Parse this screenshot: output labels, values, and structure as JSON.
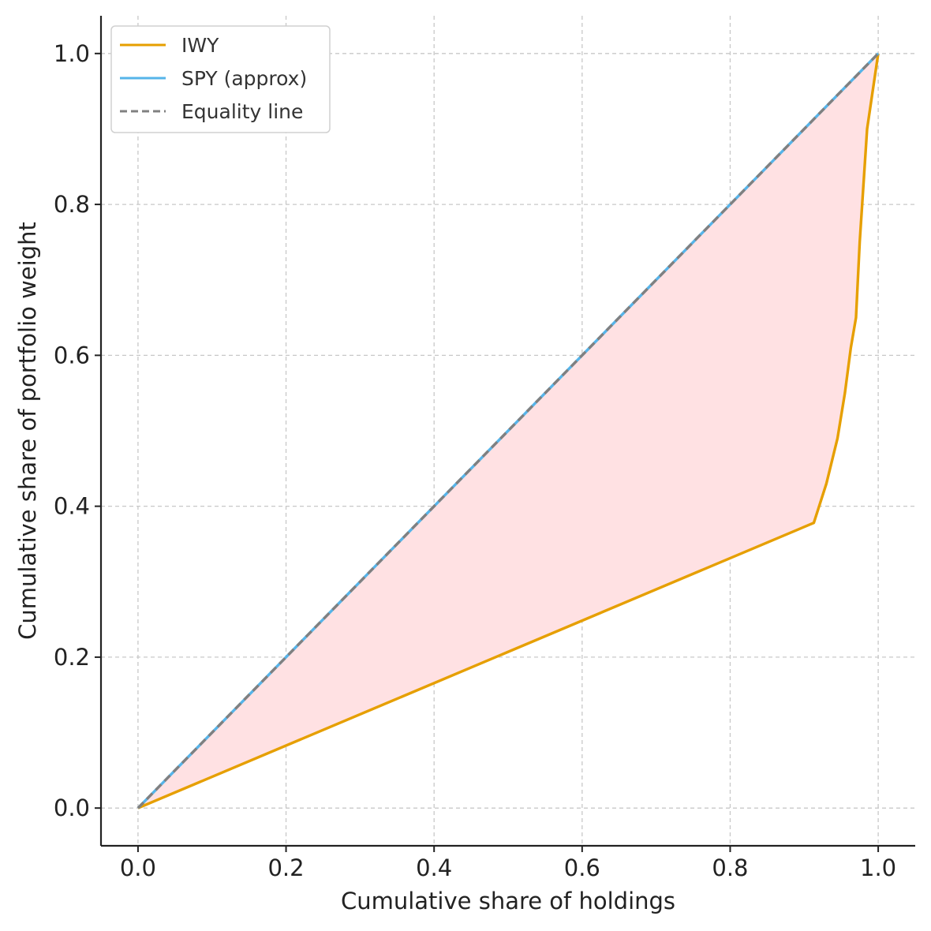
{
  "chart_data": {
    "type": "line",
    "title": "",
    "xlabel": "Cumulative share of holdings",
    "ylabel": "Cumulative share of portfolio weight",
    "xlim": [
      -0.05,
      1.05
    ],
    "ylim": [
      -0.05,
      1.05
    ],
    "xticks": [
      0.0,
      0.2,
      0.4,
      0.6,
      0.8,
      1.0
    ],
    "xtick_labels": [
      "0.0",
      "0.2",
      "0.4",
      "0.6",
      "0.8",
      "1.0"
    ],
    "yticks": [
      0.0,
      0.2,
      0.4,
      0.6,
      0.8,
      1.0
    ],
    "ytick_labels": [
      "0.0",
      "0.2",
      "0.4",
      "0.6",
      "0.8",
      "1.0"
    ],
    "grid": true,
    "legend_position": "top-left",
    "series": [
      {
        "name": "IWY",
        "color": "#E69F00",
        "style": "solid",
        "x": [
          0.0,
          0.913,
          0.93,
          0.945,
          0.955,
          0.963,
          0.97,
          0.975,
          0.985,
          1.0
        ],
        "y": [
          0.0,
          0.378,
          0.43,
          0.49,
          0.55,
          0.61,
          0.65,
          0.75,
          0.9,
          1.0
        ]
      },
      {
        "name": "SPY (approx)",
        "color": "#56B4E9",
        "style": "solid",
        "x": [
          0.0,
          1.0
        ],
        "y": [
          0.0,
          1.0
        ]
      },
      {
        "name": "Equality line",
        "color": "#808080",
        "style": "dashed",
        "x": [
          0.0,
          1.0
        ],
        "y": [
          0.0,
          1.0
        ]
      }
    ],
    "fill_between": {
      "upper_series": "Equality line",
      "lower_series": "IWY",
      "color": "#FFE1E3"
    }
  }
}
